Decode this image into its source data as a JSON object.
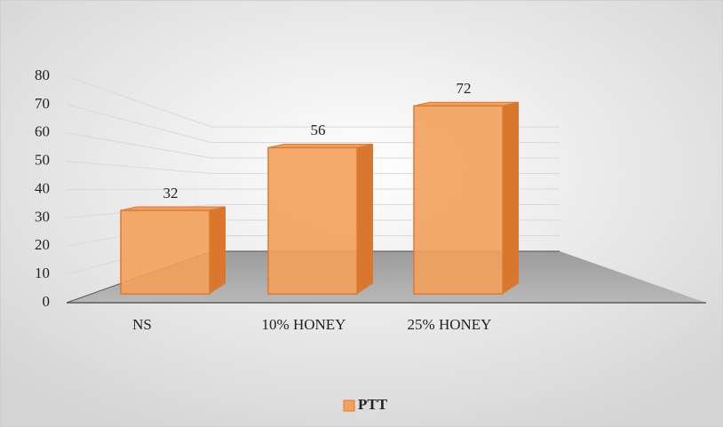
{
  "chart_data": {
    "type": "bar3d",
    "categories": [
      "NS",
      "10% HONEY",
      "25% HONEY"
    ],
    "series": [
      {
        "name": "PTT",
        "color": "#F4A15D",
        "values": [
          32,
          56,
          72
        ]
      }
    ],
    "ylim": [
      0,
      80
    ],
    "yticks": [
      0,
      10,
      20,
      30,
      40,
      50,
      60,
      70,
      80
    ],
    "grid": true,
    "legend": "bottom"
  }
}
